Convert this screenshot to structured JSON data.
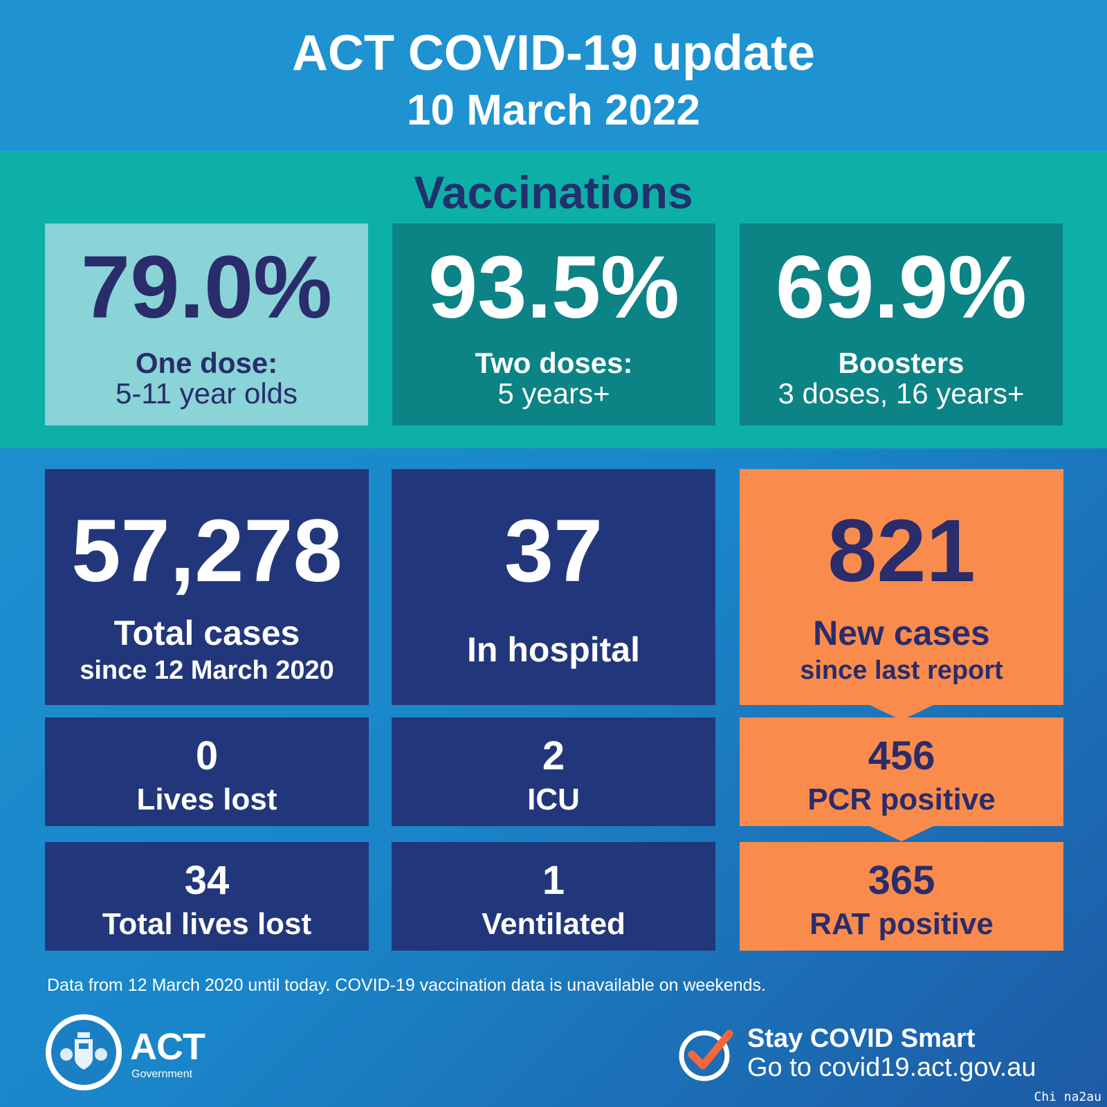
{
  "header": {
    "title": "ACT COVID-19 update",
    "date": "10 March 2022"
  },
  "vaccinations": {
    "heading": "Vaccinations",
    "cards": [
      {
        "value": "79.0%",
        "line1": "One dose:",
        "line2": "5-11 year olds"
      },
      {
        "value": "93.5%",
        "line1": "Two doses:",
        "line2": "5 years+"
      },
      {
        "value": "69.9%",
        "line1": "Boosters",
        "line2": "3 doses, 16 years+"
      }
    ]
  },
  "cases": {
    "total": {
      "value": "57,278",
      "line1": "Total cases",
      "line2": "since 12 March 2020"
    },
    "hospital": {
      "value": "37",
      "label": "In hospital"
    },
    "new": {
      "value": "821",
      "line1": "New cases",
      "line2": "since last report"
    },
    "lives_lost": {
      "value": "0",
      "label": "Lives lost"
    },
    "icu": {
      "value": "2",
      "label": "ICU"
    },
    "pcr": {
      "value": "456",
      "label": "PCR positive"
    },
    "total_lives_lost": {
      "value": "34",
      "label": "Total lives lost"
    },
    "ventilated": {
      "value": "1",
      "label": "Ventilated"
    },
    "rat": {
      "value": "365",
      "label": "RAT positive"
    }
  },
  "footnote": "Data from 12 March 2020 until today.  COVID-19 vaccination data is unavailable on weekends.",
  "logo": {
    "name": "ACT",
    "sub": "Government"
  },
  "smart": {
    "line1": "Stay COVID Smart",
    "line2": "Go to covid19.act.gov.au"
  },
  "watermark": "Chi na2au",
  "colors": {
    "header_blue": "#1f92d1",
    "teal_band": "#0db0a6",
    "light_teal": "#8ad3d6",
    "dark_teal": "#0c8385",
    "navy": "#22377b",
    "orange": "#f98c4c",
    "heading_text": "#22306e"
  }
}
